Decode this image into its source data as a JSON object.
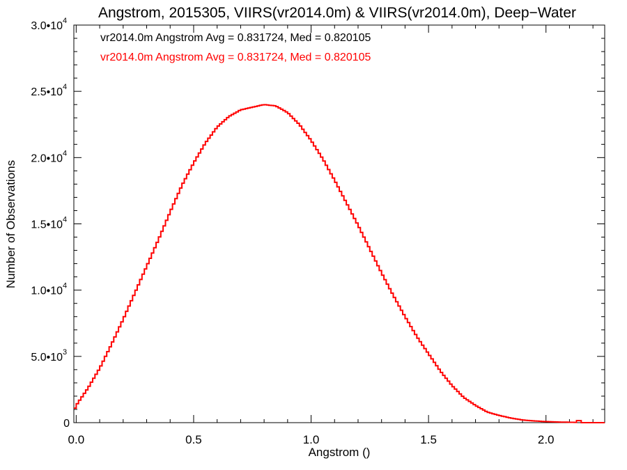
{
  "chart_data": {
    "type": "line",
    "title": "Angstrom, 2015305, VIIRS(vr2014.0m) & VIIRS(vr2014.0m), Deep−Water",
    "xlabel": "Angstrom ()",
    "ylabel": "Number of Observations",
    "xlim": [
      -0.01,
      2.25
    ],
    "ylim": [
      0,
      30000
    ],
    "x_ticks": [
      {
        "value": 0.0,
        "label": "0.0"
      },
      {
        "value": 0.5,
        "label": "0.5"
      },
      {
        "value": 1.0,
        "label": "1.0"
      },
      {
        "value": 1.5,
        "label": "1.5"
      },
      {
        "value": 2.0,
        "label": "2.0"
      }
    ],
    "y_ticks": [
      {
        "value": 0,
        "mant": "0",
        "exp": ""
      },
      {
        "value": 5000,
        "mant": "5.0•10",
        "exp": "3"
      },
      {
        "value": 10000,
        "mant": "1.0•10",
        "exp": "4"
      },
      {
        "value": 15000,
        "mant": "1.5•10",
        "exp": "4"
      },
      {
        "value": 20000,
        "mant": "2.0•10",
        "exp": "4"
      },
      {
        "value": 25000,
        "mant": "2.5•10",
        "exp": "4"
      },
      {
        "value": 30000,
        "mant": "3.0•10",
        "exp": "4"
      }
    ],
    "grid": false,
    "legend": [
      {
        "text": "vr2014.0m Angstrom Avg = 0.831724, Med = 0.820105",
        "color": "#000000"
      },
      {
        "text": "vr2014.0m Angstrom Avg = 0.831724, Med = 0.820105",
        "color": "#ff0000"
      }
    ],
    "series": [
      {
        "color": "#ff0000",
        "x": [
          -0.01,
          0.0,
          0.05,
          0.1,
          0.15,
          0.2,
          0.25,
          0.3,
          0.35,
          0.4,
          0.45,
          0.5,
          0.55,
          0.6,
          0.65,
          0.7,
          0.75,
          0.8,
          0.85,
          0.9,
          0.95,
          1.0,
          1.05,
          1.1,
          1.15,
          1.2,
          1.25,
          1.3,
          1.35,
          1.4,
          1.45,
          1.5,
          1.55,
          1.6,
          1.65,
          1.7,
          1.75,
          1.8,
          1.85,
          1.9,
          1.95,
          2.0,
          2.05,
          2.1,
          2.13,
          2.14,
          2.15,
          2.2,
          2.25
        ],
        "y": [
          900,
          1300,
          2600,
          4100,
          5900,
          7800,
          9800,
          11800,
          13800,
          15900,
          17900,
          19600,
          21100,
          22300,
          23100,
          23600,
          23800,
          24000,
          23900,
          23400,
          22500,
          21300,
          19900,
          18300,
          16600,
          14900,
          13100,
          11300,
          9600,
          8000,
          6500,
          5200,
          3900,
          2800,
          1900,
          1300,
          800,
          550,
          350,
          200,
          130,
          80,
          50,
          30,
          20,
          300,
          0,
          0,
          0
        ]
      }
    ]
  }
}
